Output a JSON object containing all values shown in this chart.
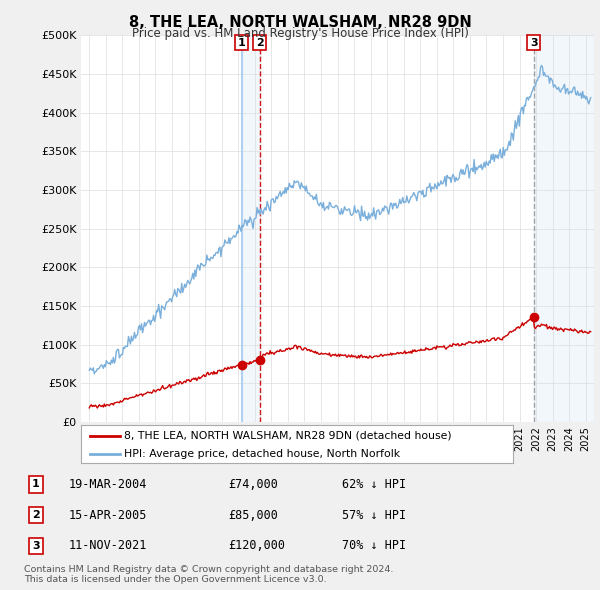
{
  "title": "8, THE LEA, NORTH WALSHAM, NR28 9DN",
  "subtitle": "Price paid vs. HM Land Registry's House Price Index (HPI)",
  "ylim": [
    0,
    500000
  ],
  "yticks": [
    0,
    50000,
    100000,
    150000,
    200000,
    250000,
    300000,
    350000,
    400000,
    450000,
    500000
  ],
  "ytick_labels": [
    "£0",
    "£50K",
    "£100K",
    "£150K",
    "£200K",
    "£250K",
    "£300K",
    "£350K",
    "£400K",
    "£450K",
    "£500K"
  ],
  "background_color": "#f0f0f0",
  "plot_background": "#ffffff",
  "hpi_color": "#7aafdb",
  "price_color": "#cc0000",
  "legend_label_price": "8, THE LEA, NORTH WALSHAM, NR28 9DN (detached house)",
  "legend_label_hpi": "HPI: Average price, detached house, North Norfolk",
  "transactions": [
    {
      "num": 1,
      "date_label": "19-MAR-2004",
      "price": 74000,
      "pct": "62%",
      "x_year": 2004.21
    },
    {
      "num": 2,
      "date_label": "15-APR-2005",
      "price": 85000,
      "pct": "57%",
      "x_year": 2005.29
    },
    {
      "num": 3,
      "date_label": "11-NOV-2021",
      "price": 120000,
      "pct": "70%",
      "x_year": 2021.86
    }
  ],
  "footer": "Contains HM Land Registry data © Crown copyright and database right 2024.\nThis data is licensed under the Open Government Licence v3.0.",
  "table_rows": [
    [
      "1",
      "19-MAR-2004",
      "£74,000",
      "62% ↓ HPI"
    ],
    [
      "2",
      "15-APR-2005",
      "£85,000",
      "57% ↓ HPI"
    ],
    [
      "3",
      "11-NOV-2021",
      "£120,000",
      "70% ↓ HPI"
    ]
  ],
  "xlim_left": 1994.5,
  "xlim_right": 2025.5
}
